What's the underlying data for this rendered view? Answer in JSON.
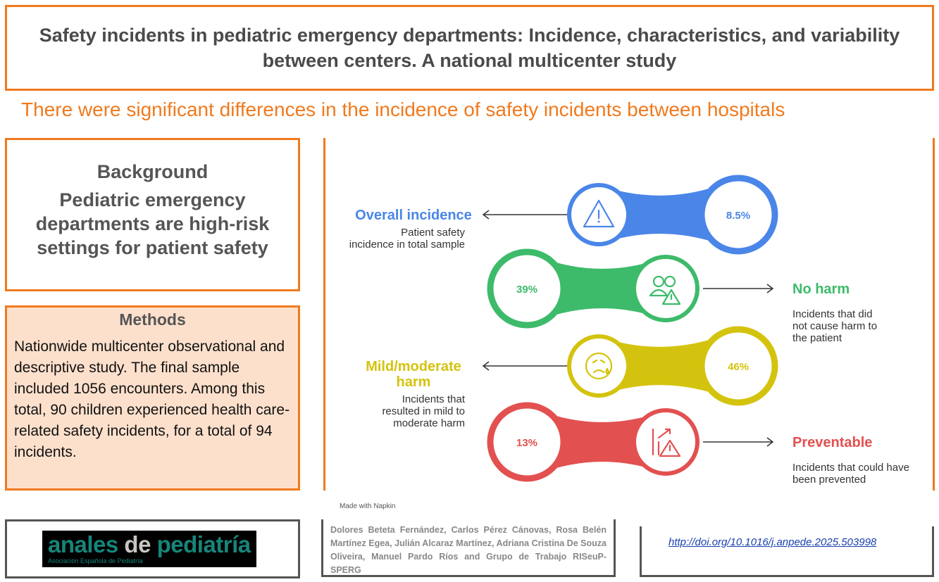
{
  "title": "Safety incidents in pediatric emergency departments: Incidence, characteristics, and variability between centers. A national multicenter study",
  "headline": "There were significant differences in the incidence of safety incidents between hospitals",
  "background": {
    "heading": "Background",
    "text": "Pediatric emergency departments are high-risk settings for patient safety"
  },
  "methods": {
    "heading": "Methods",
    "text": "Nationwide multicenter observational and descriptive study. The final sample included 1056 encounters. Among this total, 90 children experienced health care-related safety incidents, for a total of 94 incidents."
  },
  "results": [
    {
      "label": "Overall incidence",
      "desc": [
        "Patient safety",
        "incidence in total sample"
      ],
      "value": "8.5%",
      "icon": "warning-triangle-icon",
      "color": "#4a86e8"
    },
    {
      "label": "No harm",
      "desc": [
        "Incidents that did",
        "not cause harm to",
        "the patient"
      ],
      "value": "39%",
      "icon": "people-warning-icon",
      "color": "#3dbb6a"
    },
    {
      "label": "Mild/moderate harm",
      "label_lines": [
        "Mild/moderate",
        "harm"
      ],
      "desc": [
        "Incidents that",
        "resulted in mild to",
        "moderate harm"
      ],
      "value": "46%",
      "icon": "sad-face-icon",
      "color": "#d4c30e"
    },
    {
      "label": "Preventable",
      "desc": [
        "Incidents that could have",
        "been prevented"
      ],
      "value": "13%",
      "icon": "chart-warning-icon",
      "color": "#e35050"
    }
  ],
  "napkin": "Made with Napkin",
  "logo": {
    "anales": "anales",
    "de": "de",
    "pediatria": "pediatría",
    "subtitle": "Asociación Española de Pediatría"
  },
  "authors": "Dolores Beteta Fernández, Carlos Pérez Cánovas, Rosa Belén Martínez Egea, Julián Alcaraz Martínez, Adriana Cristina De Souza Oliveira, Manuel Pardo Ríos and Grupo de Trabajo RISeuP- SPERG",
  "doi": "http://doi.org/10.1016/j.anpede.2025.503998",
  "accent_color": "#f07a1e"
}
